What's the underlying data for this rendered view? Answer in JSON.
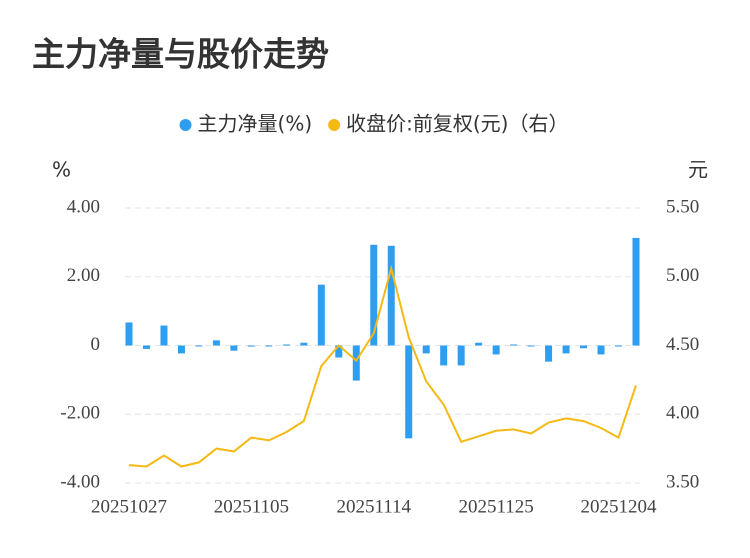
{
  "chart_data": {
    "type": "bar",
    "title": "主力净量与股价走势",
    "y_label": "%",
    "y2_label": "元",
    "categories": [
      "20251027",
      null,
      null,
      null,
      null,
      null,
      null,
      "20251105",
      null,
      null,
      null,
      null,
      null,
      null,
      "20251114",
      null,
      null,
      null,
      null,
      null,
      null,
      "20251125",
      null,
      null,
      null,
      null,
      null,
      null,
      "20251204",
      null
    ],
    "series": [
      {
        "name": "主力净量(%)",
        "color": "#2e9ef0",
        "type": "bar",
        "values": [
          0.67,
          -0.1,
          0.58,
          -0.23,
          -0.02,
          0.15,
          -0.15,
          -0.03,
          -0.01,
          0.03,
          0.08,
          1.77,
          -0.35,
          -1.02,
          2.93,
          2.9,
          -2.7,
          -0.23,
          -0.58,
          -0.58,
          0.08,
          -0.26,
          0.03,
          -0.02,
          -0.47,
          -0.23,
          -0.08,
          -0.26,
          -0.02,
          3.13
        ]
      },
      {
        "name": "收盘价:前复权(元)（右）",
        "color": "#f5b914",
        "type": "line",
        "axis": "y2",
        "values": [
          3.63,
          3.62,
          3.7,
          3.62,
          3.65,
          3.75,
          3.73,
          3.83,
          3.81,
          3.87,
          3.95,
          4.35,
          4.5,
          4.39,
          4.59,
          5.06,
          4.56,
          4.24,
          4.07,
          3.8,
          3.84,
          3.88,
          3.89,
          3.86,
          3.94,
          3.97,
          3.95,
          3.9,
          3.83,
          4.21
        ]
      }
    ],
    "ylim": [
      -4,
      4
    ],
    "yticks": [
      {
        "value": 4,
        "label": "4.00"
      },
      {
        "value": 2,
        "label": "2.00"
      },
      0,
      {
        "value": -2,
        "label": "-2.00"
      },
      {
        "value": -4,
        "label": "-4.00"
      }
    ],
    "y2lim": [
      3.5,
      5.5
    ],
    "y2ticks": [
      {
        "value": 5.5,
        "label": "5.50"
      },
      {
        "value": 5,
        "label": "5.00"
      },
      {
        "value": 4.5,
        "label": "4.50"
      },
      {
        "value": 4,
        "label": "4.00"
      },
      {
        "value": 3.5,
        "label": "3.50"
      }
    ],
    "grid": true
  }
}
